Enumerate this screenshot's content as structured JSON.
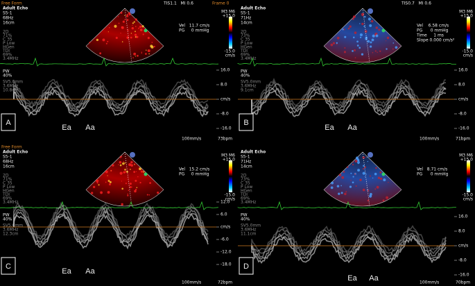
{
  "panels": [
    {
      "label": "A",
      "free_form": "Free Form",
      "top_right": "TIS1.1   MI 0.6",
      "frame": "Frame 0",
      "header": [
        "Adult Echo",
        "S5-1",
        "68Hz",
        "16cm"
      ],
      "settings": [
        "2D",
        "71%",
        "C 35",
        "P Low",
        "HGen",
        "TDI",
        "69%",
        "3.4MHz"
      ],
      "readouts": [
        "Vel   11.7 cm/s",
        "PG     0 mmHg"
      ],
      "colorbar": [
        "M3 M6",
        "+15.0",
        "-15.0",
        "cm/s"
      ],
      "pw": [
        "PW",
        "40%"
      ],
      "sv": [
        "SV5.0mm",
        "3.6MHz",
        "10.8cm"
      ],
      "scale": [
        "16.0",
        "8.0",
        "cm/s",
        "-8.0",
        "-16.0"
      ],
      "markers": [
        "Ea",
        "Aa"
      ],
      "sweep": "100mm/s",
      "bpm": "73bpm"
    },
    {
      "label": "B",
      "top_right": "TIS0.7   MI 0.6",
      "header": [
        "Adult Echo",
        "S5-1",
        "71Hz",
        "14cm"
      ],
      "settings": [
        "2D",
        "73%",
        "C 35",
        "P Low",
        "HGen",
        "TDI",
        "69%",
        "3.4MHz"
      ],
      "readouts": [
        "Vel    6.58 cm/s",
        "PG      0 mmHg",
        "Time     1 ms",
        "Slope 0.000 cm/s²"
      ],
      "colorbar": [
        "M3 M6",
        "+15.0",
        "-15.0",
        "cm/s"
      ],
      "pw": [
        "PW",
        "40%"
      ],
      "sv": [
        "SV5.0mm",
        "3.6MHz",
        "9.1cm"
      ],
      "scale": [
        "16.0",
        "8.0",
        "cm/s",
        "-8.0",
        "-16.0"
      ],
      "markers": [
        "Ea",
        "Aa"
      ],
      "sweep": "100mm/s",
      "bpm": "71bpm"
    },
    {
      "label": "C",
      "free_form": "Free Form",
      "header": [
        "Adult Echo",
        "S5-1",
        "68Hz",
        "16cm"
      ],
      "settings": [
        "2D",
        "71%",
        "C 35",
        "P Low",
        "HGen",
        "TDI",
        "69%",
        "3.4MHz"
      ],
      "readouts": [
        "Vel   15.2 cm/s",
        "PG     0 mmHg"
      ],
      "colorbar": [
        "M3 M6",
        "+15.0",
        "-15.0",
        "cm/s"
      ],
      "pw": [
        "PW",
        "40%"
      ],
      "sv": [
        "SV5.0mm",
        "3.6MHz",
        "12.3cm"
      ],
      "scale": [
        "12.0",
        "6.0",
        "cm/s",
        "-6.0",
        "-12.0",
        "-18.0"
      ],
      "markers": [
        "Ea",
        "Aa"
      ],
      "sweep": "100mm/s",
      "bpm": "72bpm"
    },
    {
      "label": "D",
      "header": [
        "Adult Echo",
        "S5-1",
        "71Hz",
        "14cm"
      ],
      "settings": [
        "2D",
        "73%",
        "C 35",
        "P Low",
        "HGen",
        "TDI",
        "69%",
        "3.4MHz"
      ],
      "readouts": [
        "Vel   8.71 cm/s",
        "PG      0 mmHg"
      ],
      "colorbar": [
        "M3 M6",
        "+15.0",
        "-15.0",
        "cm/s"
      ],
      "pw": [
        "PW",
        "40%"
      ],
      "sv": [
        "SV5.0mm",
        "3.6MHz",
        "11.1cm"
      ],
      "scale": [
        "16.0",
        "8.0",
        "cm/s",
        "-8.0",
        "-16.0"
      ],
      "markers": [
        "Ea",
        "Aa"
      ],
      "sweep": "100mm/s",
      "bpm": "70bpm"
    }
  ]
}
